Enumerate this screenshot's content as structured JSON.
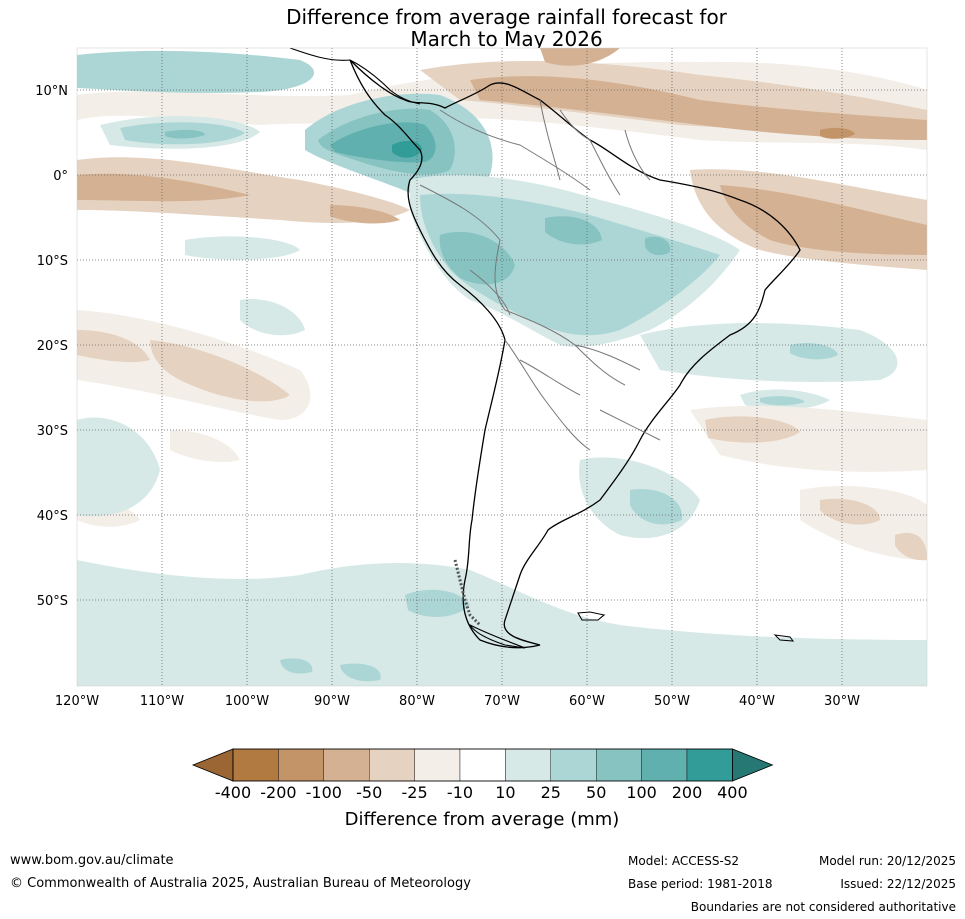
{
  "title": {
    "line1": "Difference from average rainfall forecast for",
    "line2": "March to May 2026"
  },
  "map": {
    "lat_labels": [
      "10°N",
      "0°",
      "10°S",
      "20°S",
      "30°S",
      "40°S",
      "50°S"
    ],
    "lon_labels": [
      "120°W",
      "110°W",
      "100°W",
      "90°W",
      "80°W",
      "70°W",
      "60°W",
      "50°W",
      "40°W",
      "30°W"
    ]
  },
  "legend": {
    "title": "Difference from average (mm)",
    "tick_labels": [
      "-400",
      "-200",
      "-100",
      "-50",
      "-25",
      "-10",
      "10",
      "25",
      "50",
      "100",
      "200",
      "400"
    ],
    "colors": [
      "#9b6534",
      "#b07a41",
      "#c29467",
      "#d4b192",
      "#e5d2c0",
      "#f3eee7",
      "#ffffff",
      "#d6e9e7",
      "#acd6d5",
      "#86c3c1",
      "#5fb0ae",
      "#319c98",
      "#267875"
    ]
  },
  "footer": {
    "website": "www.bom.gov.au/climate",
    "copyright": "© Commonwealth of Australia 2025, Australian Bureau of Meteorology",
    "model": "Model: ACCESS-S2",
    "base_period": "Base period: 1981-2018",
    "model_run": "Model run: 20/12/2025",
    "issued": "Issued: 22/12/2025",
    "disclaimer": "Boundaries are not considered authoritative"
  }
}
